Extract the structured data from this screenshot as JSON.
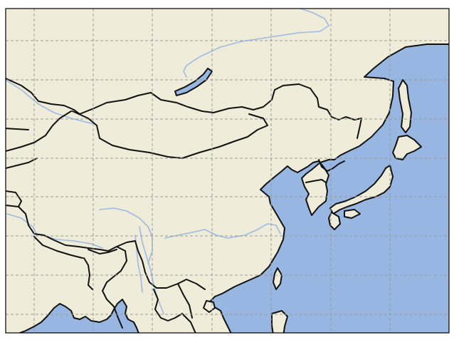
{
  "map": {
    "projection": "plate-carree",
    "gridlines": true,
    "features": [
      "land",
      "ocean",
      "coastline",
      "borders",
      "lakes",
      "rivers"
    ]
  },
  "colors": {
    "land": "#efedd9",
    "ocean": "#97b6e1",
    "coastline": "#111111",
    "rivers": "#9dbbe3",
    "gridlines": "#9a9a9a",
    "frame": "#000000"
  }
}
